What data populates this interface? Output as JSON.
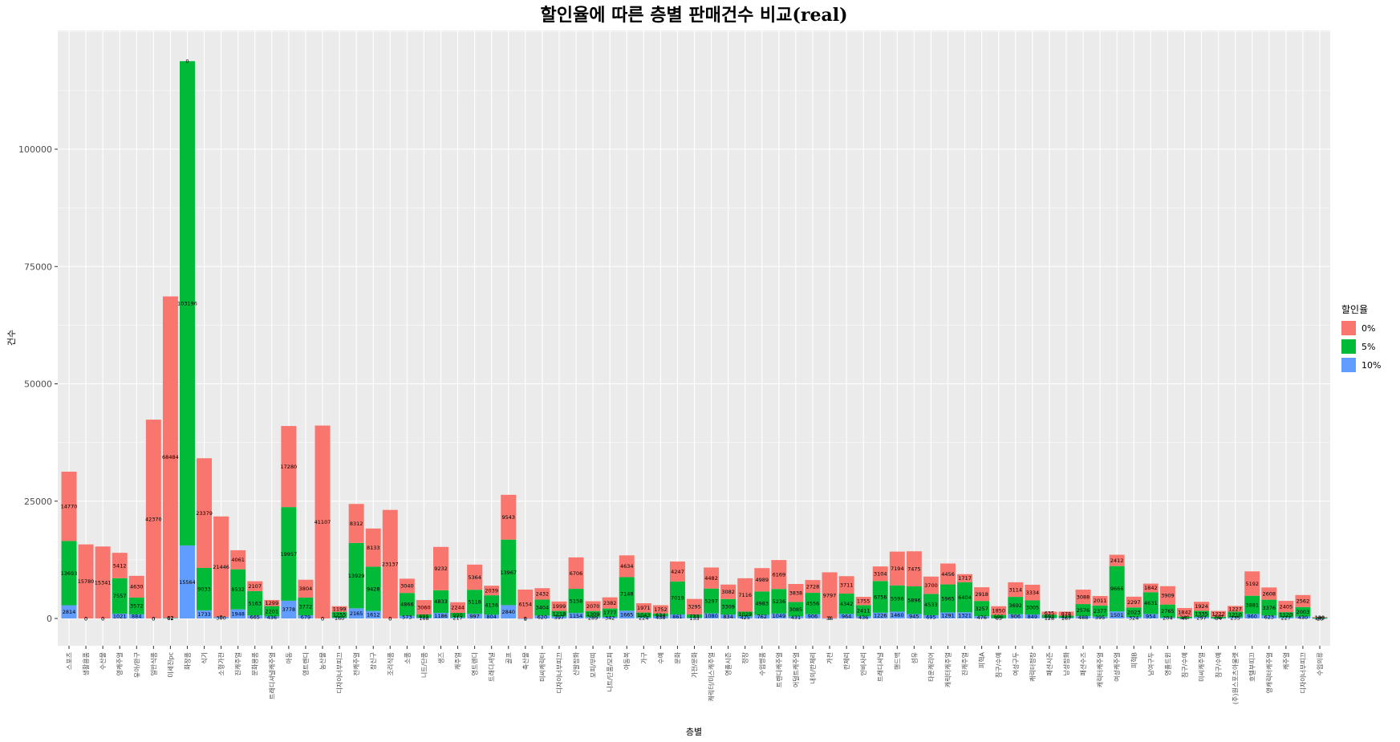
{
  "chart_data": {
    "type": "bar",
    "stacked": true,
    "title": "할인율에 따른 층별 판매건수 비교(real)",
    "xlabel": "층별",
    "ylabel": "건수",
    "ylim": [
      0,
      125000
    ],
    "yticks": [
      0,
      25000,
      50000,
      75000,
      100000
    ],
    "ytick_labels": [
      "0",
      "25000",
      "50000",
      "75000",
      "100000"
    ],
    "grid": true,
    "legend": {
      "title": "할인율",
      "position": "right"
    },
    "categories": [
      "스포츠",
      "생활용품",
      "수산물",
      "영캐주얼",
      "유아/완구",
      "일반식품",
      "미세진pc",
      "화장품",
      "식기",
      "소형가전",
      "진캐주얼",
      "문화용품",
      "트래디셔널캐주얼",
      "아동",
      "영트렌디",
      "농산물",
      "디자이너부띠끄",
      "전캐주얼",
      "장신구",
      "조리식품",
      "소품",
      "니트/단품",
      "생즈",
      "캐주얼",
      "영트렌디",
      "트래디셔널",
      "골프",
      "축산물",
      "미씨캐릭터",
      "디자이너부띠끄",
      "신발잡화",
      "모피/부띠",
      "니트/단품/모피",
      "아동복",
      "가구",
      "수예",
      "문화",
      "가전/문화",
      "캐릭터/미스캐주얼",
      "영플시즌",
      "정장",
      "수입명품",
      "트렌디캐주얼",
      "어덜트캐주얼",
      "내의/란제리",
      "가전",
      "란제리",
      "인비사리",
      "트래디셔널",
      "핸드백",
      "섬유",
      "타운캐리어",
      "캐릭터캐주얼",
      "진캐주얼",
      "피혁A",
      "침구/수예",
      "여성구두",
      "캐릭터정장",
      "패션시즌",
      "남성잡화",
      "패션수즈",
      "캐릭터캐주얼",
      "여성캐주얼",
      "피혁B",
      "남여구두",
      "영플트윈",
      "침구/수예",
      "미씨캐주얼",
      "침구/수예",
      "(주)원스포츠아울렛",
      "호텔부띠끄",
      "영캐릭터캐주얼",
      "캐주얼",
      "디자이너부띠끄",
      "수입의류"
    ],
    "series": [
      {
        "name": "0%",
        "color": "#F8766D",
        "values": [
          14770,
          15780,
          15341,
          5412,
          4630,
          42370,
          68484,
          0,
          23379,
          21446,
          4061,
          2107,
          1299,
          17280,
          3804,
          41107,
          1199,
          8312,
          8133,
          23137,
          3040,
          3060,
          9232,
          2244,
          5364,
          2039,
          9543,
          6154,
          2432,
          1999,
          6706,
          2070,
          2382,
          4634,
          1971,
          1752,
          4247,
          3295,
          4482,
          3082,
          7116,
          4989,
          6169,
          3838,
          2728,
          9797,
          3711,
          1755,
          3104,
          7194,
          7475,
          3700,
          4456,
          1717,
          2918,
          1850,
          3114,
          3334,
          635,
          878,
          3088,
          2011,
          2412,
          2297,
          1842,
          3909,
          1842,
          1924,
          1222,
          1227,
          5192,
          2608,
          2405,
          2562,
          130
        ]
      },
      {
        "name": "5%",
        "color": "#00BA38",
        "values": [
          13693,
          0,
          0,
          7557,
          3572,
          0,
          82,
          103196,
          9033,
          0,
          8532,
          5163,
          2201,
          19957,
          3772,
          0,
          1255,
          13929,
          9428,
          0,
          4866,
          695,
          4833,
          990,
          5118,
          4136,
          13967,
          0,
          3404,
          1218,
          5158,
          1309,
          1777,
          7148,
          1043,
          634,
          7019,
          733,
          5297,
          3309,
          1029,
          4983,
          5236,
          3085,
          4556,
          0,
          4342,
          2411,
          6756,
          5596,
          5896,
          4533,
          5965,
          6404,
          3257,
          695,
          3692,
          3005,
          693,
          423,
          2576,
          2377,
          9666,
          2023,
          4631,
          2765,
          340,
          1335,
          347,
          1210,
          3881,
          3376,
          1120,
          2003,
          183
        ]
      },
      {
        "name": "10%",
        "color": "#619CFF",
        "values": [
          2814,
          0,
          0,
          1021,
          884,
          0,
          62,
          15564,
          1733,
          300,
          1948,
          665,
          436,
          3778,
          679,
          0,
          160,
          2165,
          1612,
          0,
          573,
          168,
          1186,
          217,
          997,
          804,
          2840,
          1,
          620,
          397,
          1154,
          289,
          342,
          1665,
          224,
          438,
          861,
          133,
          1080,
          834,
          425,
          762,
          1049,
          431,
          906,
          36,
          964,
          436,
          1226,
          1460,
          945,
          695,
          1291,
          1321,
          476,
          63,
          906,
          849,
          128,
          167,
          488,
          395,
          1501,
          324,
          954,
          204,
          47,
          297,
          34,
          235,
          960,
          623,
          227,
          430,
          16
        ]
      }
    ]
  }
}
